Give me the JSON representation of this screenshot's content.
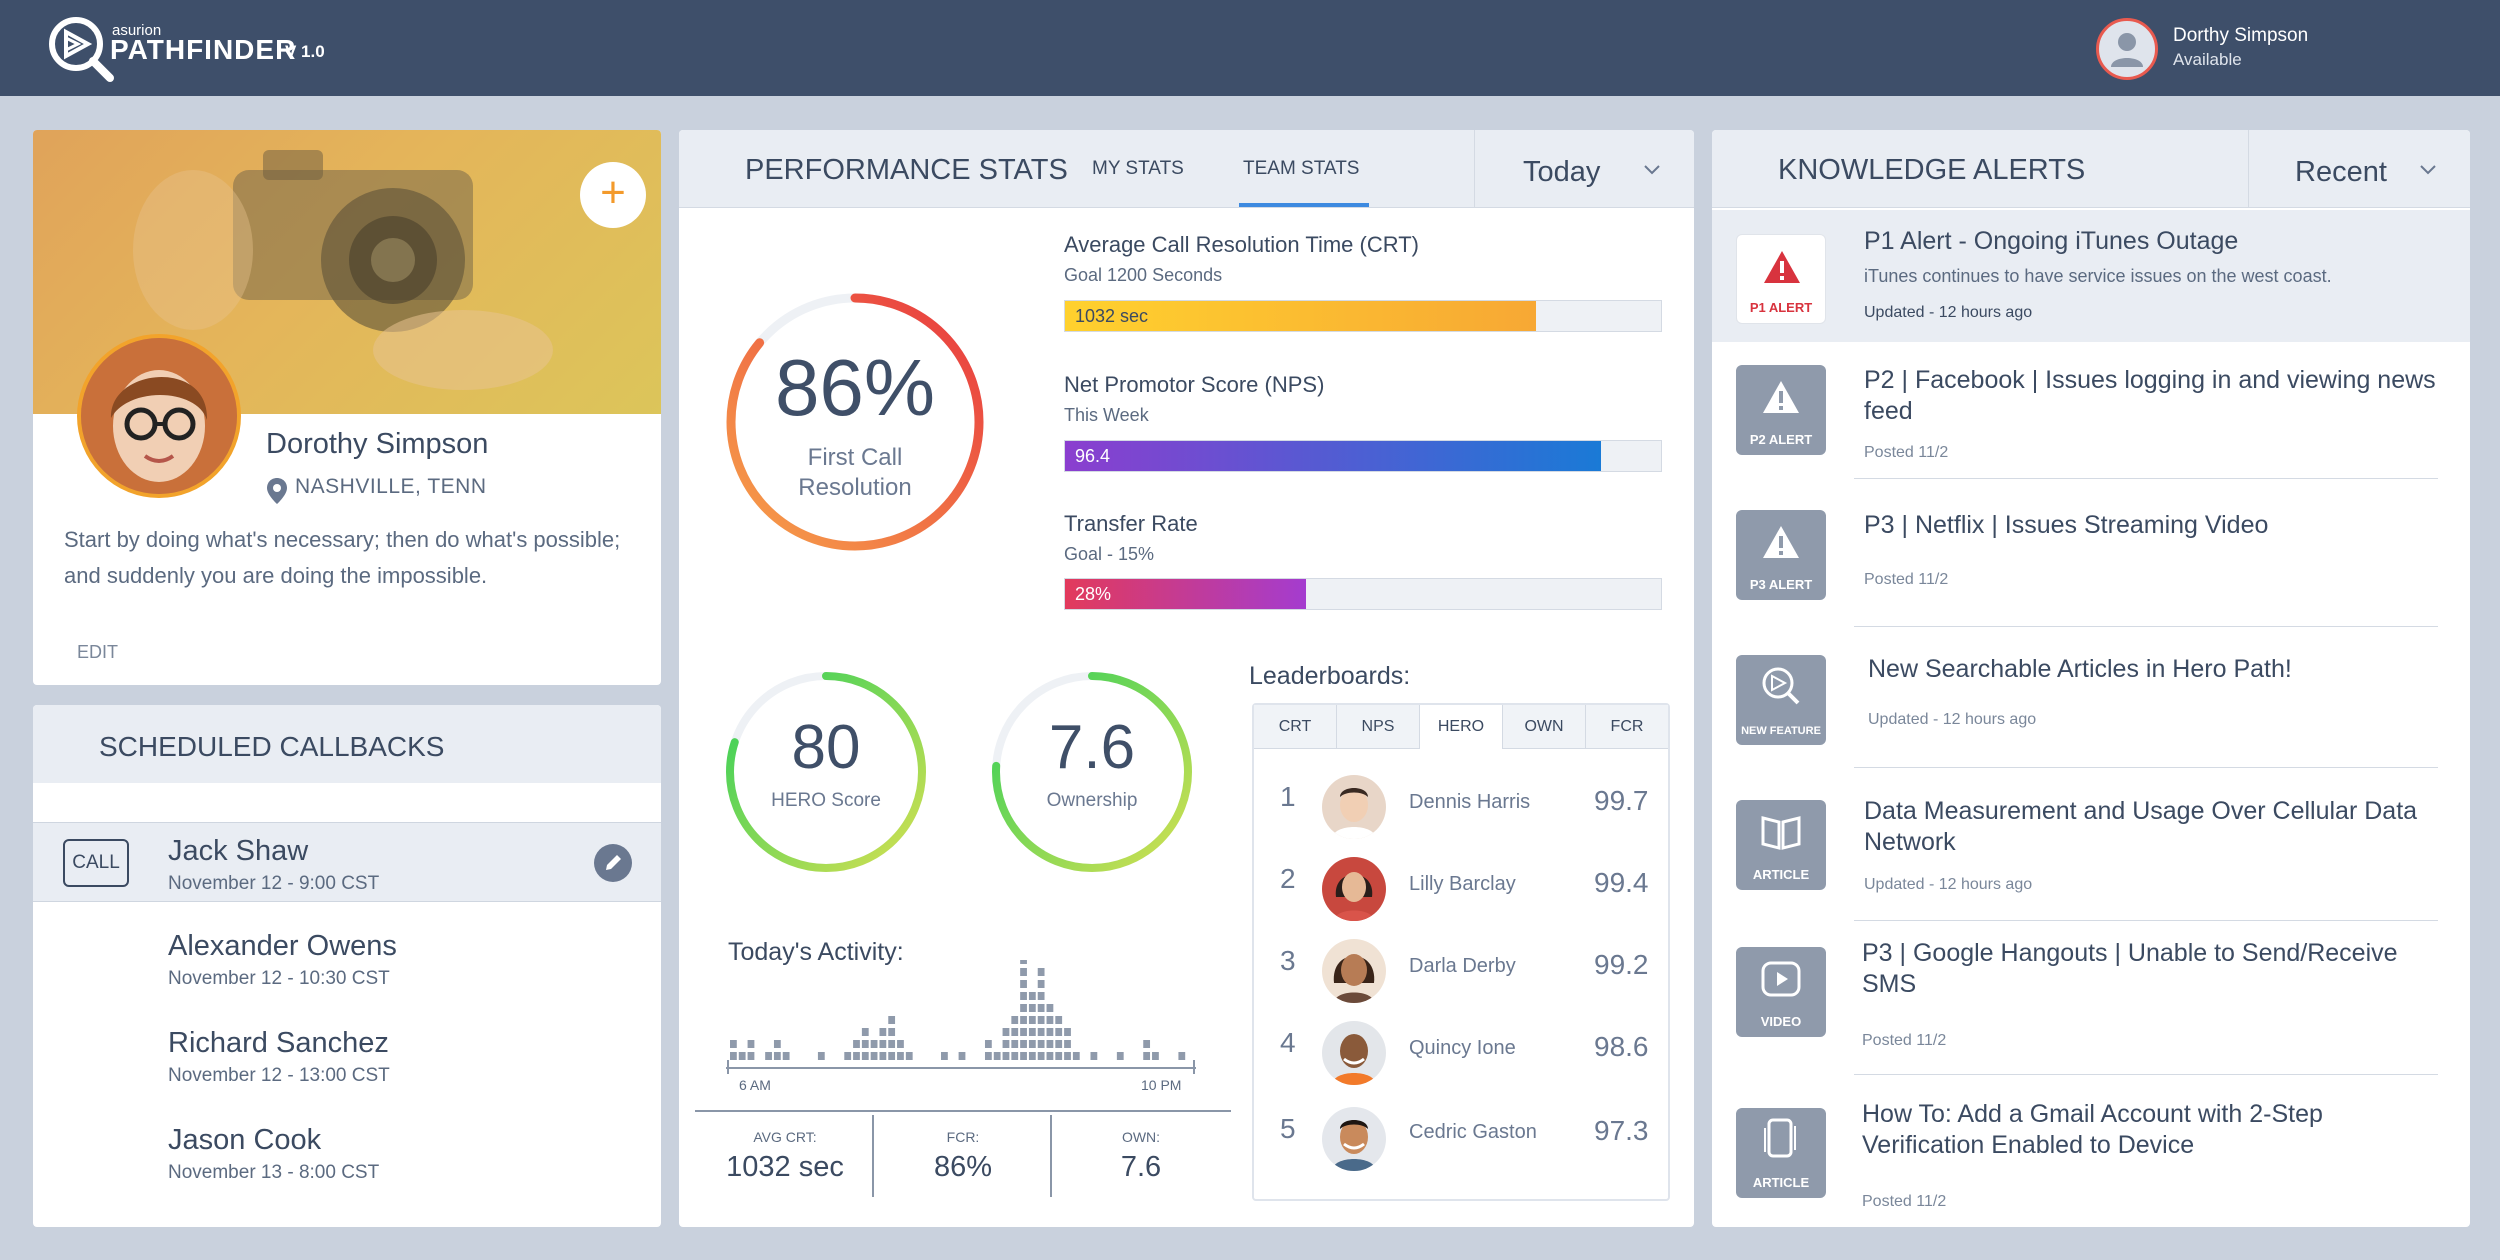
{
  "header": {
    "brand_small": "asurion",
    "brand": "PATHFINDER",
    "version": "V 1.0",
    "user_name": "Dorthy Simpson",
    "user_status": "Available"
  },
  "profile": {
    "name": "Dorothy Simpson",
    "location": "NASHVILLE, TENN",
    "quote": "Start by doing what's necessary; then do what's possible; and suddenly you are doing the impossible.",
    "edit_label": "EDIT",
    "add_label": "+"
  },
  "callbacks": {
    "title": "SCHEDULED CALLBACKS",
    "call_label": "CALL",
    "items": [
      {
        "name": "Jack Shaw",
        "time": "November 12 - 9:00 CST"
      },
      {
        "name": "Alexander Owens",
        "time": "November 12 - 10:30 CST"
      },
      {
        "name": "Richard Sanchez",
        "time": "November 12 - 13:00 CST"
      },
      {
        "name": "Jason Cook",
        "time": "November 13 - 8:00 CST"
      }
    ]
  },
  "performance": {
    "title": "PERFORMANCE STATS",
    "tabs": [
      "MY STATS",
      "TEAM STATS"
    ],
    "active_tab": "TEAM STATS",
    "period": "Today",
    "fcr": {
      "value": "86%",
      "label_line1": "First Call",
      "label_line2": "Resolution",
      "fraction": 0.86
    },
    "metrics": [
      {
        "title": "Average Call Resolution Time (CRT)",
        "sub": "Goal 1200 Seconds",
        "label": "1032 sec",
        "fraction": 0.79
      },
      {
        "title": "Net Promotor Score (NPS)",
        "sub": "This Week",
        "label": "96.4",
        "fraction": 0.9
      },
      {
        "title": "Transfer Rate",
        "sub": "Goal - 15%",
        "label": "28%",
        "fraction": 0.405
      }
    ],
    "hero": {
      "value": "80",
      "label": "HERO Score",
      "fraction": 0.8
    },
    "ownership": {
      "value": "7.6",
      "label": "Ownership",
      "fraction": 0.76
    },
    "activity": {
      "title": "Today's Activity:",
      "start_label": "6 AM",
      "end_label": "10 PM",
      "bars": [
        2,
        1,
        2,
        0,
        1,
        2,
        1,
        0,
        0,
        0,
        1,
        0,
        0,
        1,
        2,
        3,
        2,
        3,
        4,
        2,
        1,
        0,
        0,
        0,
        1,
        0,
        1,
        0,
        0,
        2,
        1,
        3,
        4,
        9,
        6,
        8,
        5,
        4,
        3,
        1,
        0,
        1,
        0,
        0,
        1,
        0,
        0,
        2,
        1,
        0,
        0,
        1,
        0
      ],
      "summary": [
        {
          "label": "AVG CRT:",
          "value": "1032 sec"
        },
        {
          "label": "FCR:",
          "value": "86%"
        },
        {
          "label": "OWN:",
          "value": "7.6"
        }
      ]
    },
    "leaderboard": {
      "title": "Leaderboards:",
      "tabs": [
        "CRT",
        "NPS",
        "HERO",
        "OWN",
        "FCR"
      ],
      "active_tab": "HERO",
      "rows": [
        {
          "rank": "1",
          "name": "Dennis Harris",
          "score": "99.7"
        },
        {
          "rank": "2",
          "name": "Lilly Barclay",
          "score": "99.4"
        },
        {
          "rank": "3",
          "name": "Darla Derby",
          "score": "99.2"
        },
        {
          "rank": "4",
          "name": "Quincy Ione",
          "score": "98.6"
        },
        {
          "rank": "5",
          "name": "Cedric Gaston",
          "score": "97.3"
        }
      ]
    }
  },
  "knowledge": {
    "title": "KNOWLEDGE ALERTS",
    "filter": "Recent",
    "items": [
      {
        "badge": "P1 ALERT",
        "icon": "warning-icon",
        "title": "P1 Alert - Ongoing iTunes Outage",
        "desc": "iTunes continues to have service issues on the west coast.",
        "meta": "Updated - 12 hours ago"
      },
      {
        "badge": "P2 ALERT",
        "icon": "warning-icon",
        "title": "P2 | Facebook | Issues logging in and viewing news feed",
        "desc": "",
        "meta": "Posted 11/2"
      },
      {
        "badge": "P3 ALERT",
        "icon": "warning-icon",
        "title": "P3 | Netflix | Issues Streaming Video",
        "desc": "",
        "meta": "Posted 11/2"
      },
      {
        "badge": "NEW FEATURE",
        "icon": "pathfinder-icon",
        "title": "New Searchable Articles in Hero Path!",
        "desc": "",
        "meta": "Updated - 12 hours ago"
      },
      {
        "badge": "ARTICLE",
        "icon": "book-icon",
        "title": "Data Measurement and Usage Over Cellular Data Network",
        "desc": "",
        "meta": "Updated - 12 hours ago"
      },
      {
        "badge": "VIDEO",
        "icon": "play-icon",
        "title": "P3 | Google Hangouts | Unable to Send/Receive SMS",
        "desc": "",
        "meta": "Posted 11/2"
      },
      {
        "badge": "ARTICLE",
        "icon": "phone-icon",
        "title": "How To: Add a Gmail Account with 2-Step Verification Enabled to Device",
        "desc": "",
        "meta": "Posted 11/2"
      }
    ]
  }
}
